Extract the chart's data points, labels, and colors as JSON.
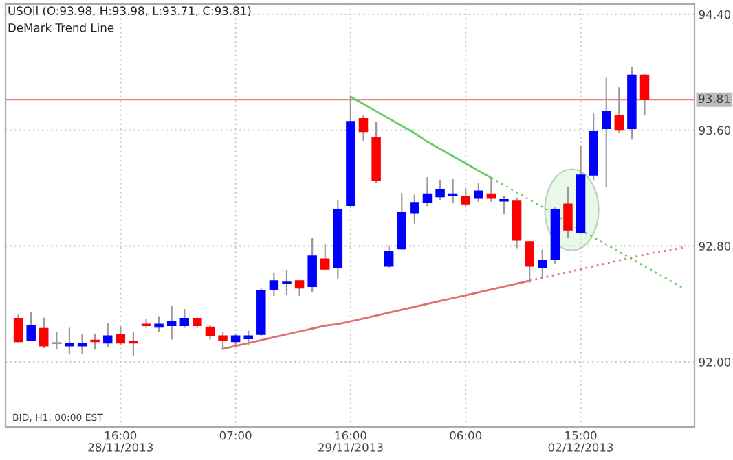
{
  "chart_data": {
    "type": "candlestick",
    "title": "USOil (O:93.98, H:93.98, L:93.71, C:93.81)",
    "subtitle": "DeMark Trend Line",
    "categories": [
      null,
      null,
      null,
      null,
      null,
      null,
      null,
      null,
      "16:00\n28/11/2013",
      null,
      null,
      null,
      null,
      null,
      null,
      null,
      null,
      "07:00",
      null,
      null,
      null,
      null,
      null,
      null,
      null,
      null,
      "16:00\n29/11/2013",
      null,
      null,
      null,
      null,
      null,
      null,
      null,
      null,
      "06:00",
      null,
      null,
      null,
      null,
      null,
      null,
      null,
      null,
      "15:00\n02/12/2013",
      null,
      null,
      null,
      null,
      null,
      null,
      null,
      null
    ],
    "ohlc": [
      [
        92.3,
        92.32,
        92.14,
        92.14
      ],
      [
        92.15,
        92.34,
        92.15,
        92.25
      ],
      [
        92.23,
        92.3,
        92.1,
        92.11
      ],
      [
        92.13,
        92.2,
        92.09,
        92.13
      ],
      [
        92.11,
        92.23,
        92.06,
        92.13
      ],
      [
        92.11,
        92.19,
        92.06,
        92.13
      ],
      [
        92.15,
        92.19,
        92.09,
        92.14
      ],
      [
        92.13,
        92.26,
        92.11,
        92.18
      ],
      [
        92.19,
        92.24,
        92.12,
        92.13
      ],
      [
        92.14,
        92.2,
        92.05,
        92.13
      ],
      [
        92.26,
        92.29,
        92.24,
        92.25
      ],
      [
        92.24,
        92.31,
        92.21,
        92.26
      ],
      [
        92.25,
        92.38,
        92.16,
        92.28
      ],
      [
        92.25,
        92.36,
        92.24,
        92.3
      ],
      [
        92.3,
        92.3,
        92.24,
        92.25
      ],
      [
        92.24,
        92.25,
        92.16,
        92.18
      ],
      [
        92.18,
        92.2,
        92.09,
        92.15
      ],
      [
        92.14,
        92.19,
        92.12,
        92.18
      ],
      [
        92.16,
        92.21,
        92.12,
        92.18
      ],
      [
        92.19,
        92.5,
        92.18,
        92.49
      ],
      [
        92.5,
        92.61,
        92.46,
        92.56
      ],
      [
        92.54,
        92.63,
        92.47,
        92.55
      ],
      [
        92.56,
        92.56,
        92.46,
        92.51
      ],
      [
        92.52,
        92.85,
        92.49,
        92.73
      ],
      [
        92.71,
        92.81,
        92.64,
        92.64
      ],
      [
        92.65,
        93.11,
        92.58,
        93.05
      ],
      [
        93.08,
        93.83,
        93.07,
        93.66
      ],
      [
        93.68,
        93.7,
        93.53,
        93.59
      ],
      [
        93.55,
        93.65,
        93.24,
        93.25
      ],
      [
        92.66,
        92.8,
        92.65,
        92.76
      ],
      [
        92.78,
        93.16,
        92.78,
        93.03
      ],
      [
        93.03,
        93.15,
        92.96,
        93.1
      ],
      [
        93.1,
        93.27,
        93.08,
        93.16
      ],
      [
        93.14,
        93.25,
        93.12,
        93.19
      ],
      [
        93.15,
        93.26,
        93.1,
        93.16
      ],
      [
        93.14,
        93.19,
        93.08,
        93.09
      ],
      [
        93.13,
        93.23,
        93.11,
        93.18
      ],
      [
        93.16,
        93.27,
        93.11,
        93.13
      ],
      [
        93.11,
        93.14,
        93.03,
        93.12
      ],
      [
        93.11,
        93.13,
        92.79,
        92.84
      ],
      [
        92.83,
        92.83,
        92.55,
        92.66
      ],
      [
        92.65,
        92.77,
        92.59,
        92.7
      ],
      [
        92.71,
        93.06,
        92.68,
        93.05
      ],
      [
        93.09,
        93.2,
        92.86,
        92.91
      ],
      [
        92.89,
        93.49,
        92.89,
        93.29
      ],
      [
        93.29,
        93.71,
        93.26,
        93.59
      ],
      [
        93.61,
        93.96,
        93.21,
        93.73
      ],
      [
        93.7,
        93.89,
        93.59,
        93.6
      ],
      [
        93.61,
        94.03,
        93.54,
        93.98
      ],
      [
        93.98,
        93.98,
        93.71,
        93.81
      ],
      null,
      null,
      null
    ],
    "colors": [
      "#ff0000",
      "#0000ff",
      "#ff0000",
      "#999999",
      "#0000ff",
      "#0000ff",
      "#ff0000",
      "#0000ff",
      "#ff0000",
      "#ff0000",
      "#ff0000",
      "#0000ff",
      "#0000ff",
      "#0000ff",
      "#ff0000",
      "#ff0000",
      "#ff0000",
      "#0000ff",
      "#0000ff",
      "#0000ff",
      "#0000ff",
      "#0000ff",
      "#ff0000",
      "#0000ff",
      "#ff0000",
      "#0000ff",
      "#0000ff",
      "#ff0000",
      "#ff0000",
      "#0000ff",
      "#0000ff",
      "#0000ff",
      "#0000ff",
      "#0000ff",
      "#0000ff",
      "#ff0000",
      "#0000ff",
      "#ff0000",
      "#0000ff",
      "#ff0000",
      "#ff0000",
      "#0000ff",
      "#0000ff",
      "#ff0000",
      "#0000ff",
      "#0000ff",
      "#0000ff",
      "#ff0000",
      "#0000ff",
      "#ff0000",
      null,
      null,
      null
    ],
    "series": [
      {
        "type": "line",
        "color": "#66cc66",
        "line_style": "solid",
        "values": [
          null,
          null,
          null,
          null,
          null,
          null,
          null,
          null,
          null,
          null,
          null,
          null,
          null,
          null,
          null,
          null,
          null,
          null,
          null,
          null,
          null,
          null,
          null,
          null,
          null,
          null,
          93.83,
          93.78,
          93.73,
          93.68,
          93.63,
          93.58,
          93.52,
          93.47,
          93.42,
          93.37,
          93.32,
          93.27,
          null,
          null,
          null,
          null,
          null,
          null,
          null,
          null,
          null,
          null,
          null,
          null,
          null,
          null,
          null
        ]
      },
      {
        "type": "line",
        "color": "#66cc66",
        "line_style": "dotted",
        "values": [
          null,
          null,
          null,
          null,
          null,
          null,
          null,
          null,
          null,
          null,
          null,
          null,
          null,
          null,
          null,
          null,
          null,
          null,
          null,
          null,
          null,
          null,
          null,
          null,
          null,
          null,
          null,
          null,
          null,
          null,
          null,
          null,
          null,
          null,
          null,
          null,
          null,
          93.27,
          93.22,
          93.17,
          93.12,
          93.07,
          93.02,
          92.96,
          92.91,
          92.86,
          92.81,
          92.76,
          92.71,
          92.66,
          92.61,
          92.56,
          92.51
        ]
      },
      {
        "type": "line",
        "color": "#e07070",
        "line_style": "solid",
        "values": [
          null,
          null,
          null,
          null,
          null,
          null,
          null,
          null,
          null,
          null,
          null,
          null,
          null,
          null,
          null,
          null,
          92.09,
          92.11,
          92.13,
          92.15,
          92.17,
          92.19,
          92.21,
          92.23,
          92.25,
          92.26,
          92.28,
          92.3,
          92.32,
          92.34,
          92.36,
          92.38,
          92.4,
          92.42,
          92.44,
          92.46,
          92.48,
          92.5,
          92.52,
          92.54,
          92.56,
          null,
          null,
          null,
          null,
          null,
          null,
          null,
          null,
          null,
          null,
          null,
          null
        ]
      },
      {
        "type": "line",
        "color": "#e07070",
        "line_style": "dotted",
        "values": [
          null,
          null,
          null,
          null,
          null,
          null,
          null,
          null,
          null,
          null,
          null,
          null,
          null,
          null,
          null,
          null,
          null,
          null,
          null,
          null,
          null,
          null,
          null,
          null,
          null,
          null,
          null,
          null,
          null,
          null,
          null,
          null,
          null,
          null,
          null,
          null,
          null,
          null,
          null,
          null,
          92.56,
          92.58,
          92.6,
          92.62,
          92.64,
          92.66,
          92.68,
          92.7,
          92.72,
          92.74,
          92.76,
          92.77,
          92.79
        ]
      }
    ],
    "ylim": [
      91.55,
      94.47
    ],
    "yticks": [
      {
        "value": 92,
        "label": "92.00"
      },
      {
        "value": 92.8,
        "label": "92.80"
      },
      {
        "value": 93.6,
        "label": "93.60"
      },
      {
        "value": 94.4,
        "label": "94.40"
      }
    ],
    "ref_lines": [
      {
        "axis": "y",
        "value": 93.81,
        "label": "93.81",
        "color": "#f08080"
      }
    ],
    "grid": true,
    "annotations": [
      "BID, H1, 00:00 EST"
    ]
  }
}
